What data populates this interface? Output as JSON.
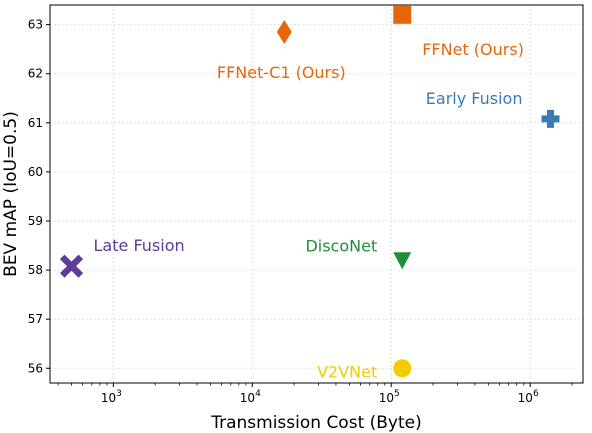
{
  "chart_data": {
    "type": "scatter",
    "xlabel": "Transmission Cost (Byte)",
    "ylabel": "BEV mAP (IoU=0.5)",
    "xscale": "log",
    "xlim": [
      350,
      2400000
    ],
    "ylim": [
      55.7,
      63.4
    ],
    "grid": true,
    "x_ticks": [
      {
        "value": 1000,
        "base": "10",
        "exp": "3"
      },
      {
        "value": 10000,
        "base": "10",
        "exp": "4"
      },
      {
        "value": 100000,
        "base": "10",
        "exp": "5"
      },
      {
        "value": 1000000,
        "base": "10",
        "exp": "6"
      }
    ],
    "y_ticks": [
      56,
      57,
      58,
      59,
      60,
      61,
      62,
      63
    ],
    "points": [
      {
        "label": "FFNet (Ours)",
        "x": 120000,
        "y": 63.2,
        "marker": "square",
        "color": "#e8660a"
      },
      {
        "label": "FFNet-C1 (Ours)",
        "x": 17000,
        "y": 62.85,
        "marker": "diamond",
        "color": "#e8660a"
      },
      {
        "label": "Early Fusion",
        "x": 1400000,
        "y": 61.08,
        "marker": "plus",
        "color": "#3b7bb5"
      },
      {
        "label": "Late Fusion",
        "x": 500,
        "y": 58.08,
        "marker": "x",
        "color": "#5e3c99"
      },
      {
        "label": "DiscoNet",
        "x": 120000,
        "y": 58.2,
        "marker": "triangle-down",
        "color": "#1f8f3a"
      },
      {
        "label": "V2VNet",
        "x": 120000,
        "y": 56.0,
        "marker": "circle",
        "color": "#f2cc00"
      }
    ]
  }
}
